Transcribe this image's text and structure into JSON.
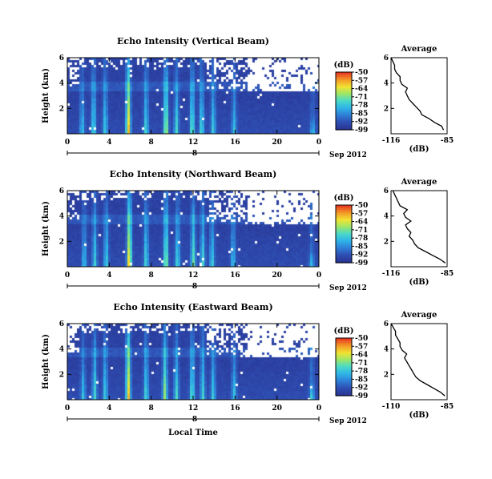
{
  "figure": {
    "panel_titles": [
      "Echo Intensity (Vertical Beam)",
      "Echo Intensity (Northward Beam)",
      "Echo Intensity (Eastward Beam)"
    ],
    "ylabel": "Height (km)",
    "xlabel": "Local Time",
    "date_label": "Sep 2012",
    "day_label": "8",
    "colorbar_title": "(dB)",
    "avg_title": "Average",
    "avg_xlabel": "(dB)"
  },
  "colors": {
    "colormap": [
      "#283593",
      "#2f4fb4",
      "#2e7fd6",
      "#2fb3e8",
      "#49d9c9",
      "#9ae66a",
      "#f2e331",
      "#f39a27",
      "#e83a21"
    ],
    "background": "#383f8f"
  },
  "chart_data": [
    {
      "type": "heatmap",
      "title": "Echo Intensity (Vertical Beam)",
      "xlabel": "Local Time",
      "ylabel": "Height (km)",
      "xlim": [
        0,
        24
      ],
      "ylim": [
        0,
        6
      ],
      "xticks": [
        "0",
        "4",
        "8",
        "12",
        "16",
        "20",
        "0"
      ],
      "yticks": [
        "2",
        "4",
        "6"
      ],
      "colorbar": {
        "title": "(dB)",
        "ticks": [
          "-50",
          "-57",
          "-64",
          "-71",
          "-78",
          "-85",
          "-92",
          "-99"
        ],
        "range": [
          -99,
          -50
        ]
      },
      "plumes": [
        {
          "t": 1.3,
          "strength": 0.45,
          "top": 4.2
        },
        {
          "t": 2.4,
          "strength": 0.55,
          "top": 5.5
        },
        {
          "t": 3.5,
          "strength": 0.5,
          "top": 5.2
        },
        {
          "t": 5.7,
          "strength": 1.0,
          "top": 6.0
        },
        {
          "t": 7.4,
          "strength": 0.55,
          "top": 5.0
        },
        {
          "t": 9.3,
          "strength": 0.8,
          "top": 5.6
        },
        {
          "t": 10.3,
          "strength": 0.55,
          "top": 5.0
        },
        {
          "t": 11.8,
          "strength": 0.65,
          "top": 5.4
        },
        {
          "t": 12.7,
          "strength": 0.55,
          "top": 5.0
        },
        {
          "t": 13.8,
          "strength": 0.5,
          "top": 4.8
        },
        {
          "t": 15.8,
          "strength": 0.45,
          "top": 4.5
        },
        {
          "t": 23.3,
          "strength": 0.45,
          "top": 1.5
        }
      ],
      "blank_region": "upper-right",
      "average_profile": {
        "title": "Average",
        "xlabel": "(dB)",
        "xticks": [
          "-116",
          "-85"
        ],
        "yticks": [
          "2",
          "4",
          "6"
        ],
        "xlim": [
          -116,
          -85
        ],
        "height_km": [
          0.3,
          0.6,
          0.9,
          1.2,
          1.5,
          1.8,
          2.1,
          2.4,
          2.7,
          3.0,
          3.3,
          3.6,
          3.9,
          4.2,
          4.5,
          4.8,
          5.1,
          5.4,
          5.7,
          6.0
        ],
        "db": [
          -87,
          -88,
          -92,
          -95,
          -99,
          -100,
          -102,
          -104,
          -106,
          -107,
          -108,
          -107,
          -110,
          -111,
          -111,
          -113,
          -114,
          -114,
          -115,
          -116
        ]
      }
    },
    {
      "type": "heatmap",
      "title": "Echo Intensity (Northward Beam)",
      "xlabel": "Local Time",
      "ylabel": "Height (km)",
      "xlim": [
        0,
        24
      ],
      "ylim": [
        0,
        6
      ],
      "xticks": [
        "0",
        "4",
        "8",
        "12",
        "16",
        "20",
        "0"
      ],
      "yticks": [
        "2",
        "4",
        "6"
      ],
      "colorbar": {
        "title": "(dB)",
        "ticks": [
          "-50",
          "-57",
          "-64",
          "-71",
          "-78",
          "-85",
          "-92",
          "-99"
        ],
        "range": [
          -99,
          -50
        ]
      },
      "plumes": [
        {
          "t": 1.5,
          "strength": 0.45,
          "top": 4.4
        },
        {
          "t": 2.5,
          "strength": 0.5,
          "top": 5.5
        },
        {
          "t": 3.6,
          "strength": 0.5,
          "top": 5.3
        },
        {
          "t": 5.8,
          "strength": 1.0,
          "top": 6.0
        },
        {
          "t": 7.4,
          "strength": 0.55,
          "top": 5.2
        },
        {
          "t": 9.3,
          "strength": 0.75,
          "top": 5.6
        },
        {
          "t": 10.4,
          "strength": 0.55,
          "top": 5.0
        },
        {
          "t": 11.9,
          "strength": 0.65,
          "top": 5.4
        },
        {
          "t": 12.8,
          "strength": 0.55,
          "top": 5.0
        },
        {
          "t": 13.7,
          "strength": 0.5,
          "top": 4.8
        },
        {
          "t": 15.7,
          "strength": 0.45,
          "top": 4.5
        },
        {
          "t": 23.2,
          "strength": 0.45,
          "top": 1.4
        }
      ],
      "blank_region": "upper-right",
      "average_profile": {
        "title": "Average",
        "xlabel": "(dB)",
        "xticks": [
          "-116",
          "-85"
        ],
        "yticks": [
          "2",
          "4",
          "6"
        ],
        "xlim": [
          -116,
          -85
        ],
        "height_km": [
          0.3,
          0.6,
          0.9,
          1.2,
          1.5,
          1.8,
          2.1,
          2.4,
          2.7,
          3.0,
          3.3,
          3.6,
          3.9,
          4.2,
          4.5,
          4.8,
          5.1,
          5.4,
          5.7,
          6.0
        ],
        "db": [
          -86,
          -89,
          -93,
          -97,
          -101,
          -103,
          -104,
          -106,
          -105,
          -107,
          -108,
          -105,
          -108,
          -109,
          -107,
          -111,
          -112,
          -113,
          -114,
          -115
        ]
      }
    },
    {
      "type": "heatmap",
      "title": "Echo Intensity (Eastward Beam)",
      "xlabel": "Local Time",
      "ylabel": "Height (km)",
      "xlim": [
        0,
        24
      ],
      "ylim": [
        0,
        6
      ],
      "xticks": [
        "0",
        "4",
        "8",
        "12",
        "16",
        "20",
        "0"
      ],
      "yticks": [
        "2",
        "4",
        "6"
      ],
      "colorbar": {
        "title": "(dB)",
        "ticks": [
          "-50",
          "-57",
          "-64",
          "-71",
          "-78",
          "-85",
          "-92",
          "-99"
        ],
        "range": [
          -99,
          -50
        ]
      },
      "plumes": [
        {
          "t": 1.4,
          "strength": 0.45,
          "top": 4.3
        },
        {
          "t": 2.5,
          "strength": 0.55,
          "top": 5.4
        },
        {
          "t": 3.5,
          "strength": 0.5,
          "top": 5.2
        },
        {
          "t": 5.7,
          "strength": 1.0,
          "top": 6.0
        },
        {
          "t": 7.4,
          "strength": 0.55,
          "top": 5.1
        },
        {
          "t": 9.2,
          "strength": 0.75,
          "top": 5.5
        },
        {
          "t": 10.3,
          "strength": 0.55,
          "top": 5.0
        },
        {
          "t": 11.8,
          "strength": 0.6,
          "top": 5.3
        },
        {
          "t": 12.8,
          "strength": 0.55,
          "top": 5.0
        },
        {
          "t": 13.8,
          "strength": 0.5,
          "top": 4.8
        },
        {
          "t": 15.8,
          "strength": 0.45,
          "top": 4.4
        },
        {
          "t": 23.2,
          "strength": 0.55,
          "top": 1.5
        }
      ],
      "blank_region": "upper-right",
      "average_profile": {
        "title": "Average",
        "xlabel": "(dB)",
        "xticks": [
          "-110",
          "-85"
        ],
        "yticks": [
          "2",
          "4",
          "6"
        ],
        "xlim": [
          -110,
          -85
        ],
        "height_km": [
          0.3,
          0.6,
          0.9,
          1.2,
          1.5,
          1.8,
          2.1,
          2.4,
          2.7,
          3.0,
          3.3,
          3.6,
          3.9,
          4.2,
          4.5,
          4.8,
          5.1,
          5.4,
          5.7,
          6.0
        ],
        "db": [
          -86,
          -88,
          -91,
          -94,
          -97,
          -99,
          -100,
          -101,
          -102,
          -103,
          -104,
          -103,
          -105,
          -106,
          -106,
          -107,
          -108,
          -108,
          -109,
          -110
        ]
      }
    }
  ]
}
